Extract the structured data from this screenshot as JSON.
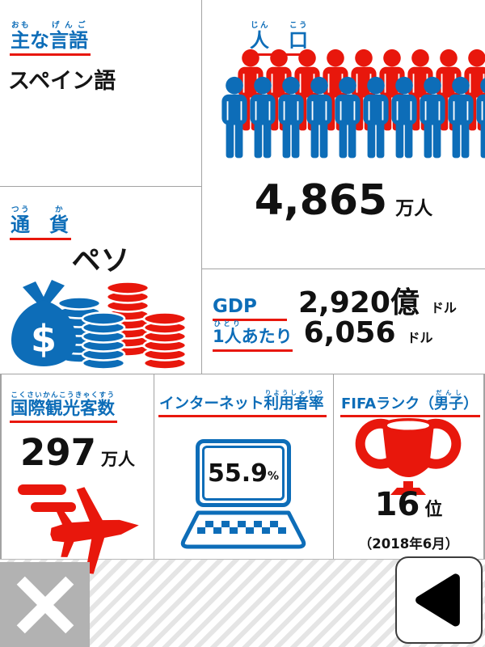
{
  "colors": {
    "blue": "#0d6db8",
    "red": "#e8170c",
    "text": "#111111",
    "gray_button": "#b2b2b2"
  },
  "language": {
    "title": [
      {
        "b": "主",
        "r": "おも"
      },
      {
        "b": "な",
        "r": ""
      },
      {
        "b": "言語",
        "r": "げんご"
      }
    ],
    "value": "スペイン語"
  },
  "population": {
    "title": [
      {
        "b": "人",
        "r": "じん"
      },
      {
        "b": "　",
        "r": ""
      },
      {
        "b": "口",
        "r": "こう"
      }
    ],
    "value": "4,865",
    "unit": "万人"
  },
  "currency": {
    "title": [
      {
        "b": "通",
        "r": "つう"
      },
      {
        "b": "　",
        "r": ""
      },
      {
        "b": "貨",
        "r": "か"
      }
    ],
    "value": "ペソ",
    "bag_symbol": "$"
  },
  "gdp": {
    "label": "GDP",
    "value": "2,920億",
    "unit": "ドル"
  },
  "per_capita": {
    "label": [
      {
        "b": "1人",
        "r": "ひとり"
      },
      {
        "b": "あたり",
        "r": ""
      }
    ],
    "value": "6,056",
    "unit": "ドル"
  },
  "tourists": {
    "title": [
      {
        "b": "国際観光客数",
        "r": "こくさいかんこうきゃくすう"
      }
    ],
    "value": "297",
    "unit": "万人"
  },
  "internet": {
    "title": [
      {
        "b": "インターネット",
        "r": ""
      },
      {
        "b": "利用者率",
        "r": "りようしゃりつ"
      }
    ],
    "value": "55.9",
    "unit": "%"
  },
  "fifa": {
    "title": [
      {
        "b": "FIFAランク（",
        "r": ""
      },
      {
        "b": "男子",
        "r": "だんし"
      },
      {
        "b": "）",
        "r": ""
      }
    ],
    "value": "16",
    "unit": "位",
    "note": "（2018年6月）"
  }
}
